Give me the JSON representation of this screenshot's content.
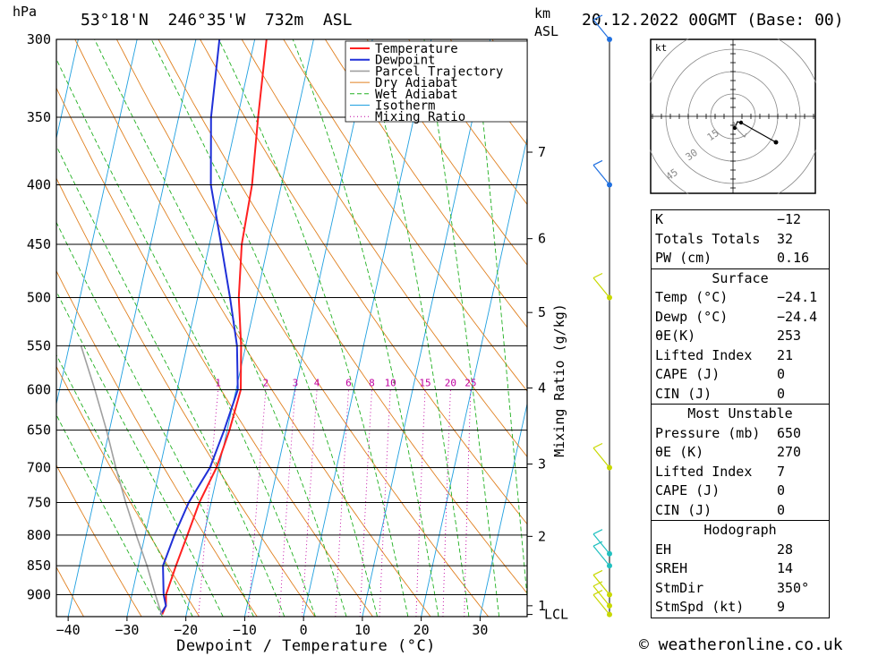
{
  "header": {
    "pressure_unit": "hPa",
    "location": "53°18'N  246°35'W  732m  ASL",
    "height_unit_km": "km",
    "height_unit_asl": "ASL",
    "datetime": "20.12.2022 00GMT (Base: 00)"
  },
  "chart_data": {
    "type": "line",
    "title": "53°18'N  246°35'W  732m  ASL",
    "xlabel": "Dewpoint / Temperature (°C)",
    "ylabel": "hPa",
    "y2label": "Mixing Ratio (g/kg)",
    "xlim": [
      -42,
      38
    ],
    "ylim": [
      940,
      300
    ],
    "y_scale": "log",
    "x_ticks": [
      "−40",
      "−30",
      "−20",
      "−10",
      "0",
      "10",
      "20",
      "30"
    ],
    "x_tick_values": [
      -40,
      -30,
      -20,
      -10,
      0,
      10,
      20,
      30
    ],
    "pressure_levels": [
      300,
      350,
      400,
      450,
      500,
      550,
      600,
      650,
      700,
      750,
      800,
      850,
      900
    ],
    "height_km_labels": [
      {
        "label": "7",
        "p": 375
      },
      {
        "label": "6",
        "p": 445
      },
      {
        "label": "5",
        "p": 515
      },
      {
        "label": "4",
        "p": 598
      },
      {
        "label": "3",
        "p": 695
      },
      {
        "label": "2",
        "p": 802
      },
      {
        "label": "1",
        "p": 920
      },
      {
        "label": "LCL",
        "p": 936
      }
    ],
    "mixing_ratio_labels": [
      "1",
      "2",
      "3",
      "4",
      "6",
      "8",
      "10",
      "15",
      "20",
      "25"
    ],
    "mixing_ratio_values": [
      1,
      2,
      3,
      4,
      6,
      8,
      10,
      15,
      20,
      25
    ],
    "legend": [
      "Temperature",
      "Dewpoint",
      "Parcel Trajectory",
      "Dry Adiabat",
      "Wet Adiabat",
      "Isotherm",
      "Mixing Ratio"
    ],
    "legend_position": "top-right",
    "series": [
      {
        "name": "Temperature",
        "color": "#ff2020",
        "points": [
          [
            -24.1,
            936
          ],
          [
            -23.8,
            920
          ],
          [
            -24.2,
            900
          ],
          [
            -23.6,
            850
          ],
          [
            -22.8,
            800
          ],
          [
            -22.0,
            750
          ],
          [
            -20.4,
            700
          ],
          [
            -19.6,
            650
          ],
          [
            -19.2,
            600
          ],
          [
            -20.8,
            550
          ],
          [
            -23.0,
            500
          ],
          [
            -24.5,
            450
          ],
          [
            -25.0,
            400
          ],
          [
            -26.5,
            350
          ],
          [
            -28.0,
            300
          ]
        ]
      },
      {
        "name": "Dewpoint",
        "color": "#2030d8",
        "points": [
          [
            -24.4,
            936
          ],
          [
            -23.8,
            920
          ],
          [
            -24.6,
            900
          ],
          [
            -25.8,
            850
          ],
          [
            -25.0,
            800
          ],
          [
            -23.8,
            750
          ],
          [
            -21.5,
            700
          ],
          [
            -20.5,
            650
          ],
          [
            -19.7,
            600
          ],
          [
            -21.5,
            550
          ],
          [
            -24.5,
            500
          ],
          [
            -28.0,
            450
          ],
          [
            -32.0,
            400
          ],
          [
            -34.5,
            350
          ],
          [
            -36.0,
            300
          ]
        ]
      },
      {
        "name": "Parcel Trajectory",
        "color": "#a0a0a0",
        "points": [
          [
            -24.2,
            936
          ],
          [
            -26.0,
            900
          ],
          [
            -28.5,
            850
          ],
          [
            -31.5,
            800
          ],
          [
            -34.5,
            750
          ],
          [
            -37.5,
            700
          ],
          [
            -40.5,
            650
          ],
          [
            -44.0,
            600
          ],
          [
            -48.0,
            550
          ]
        ]
      }
    ],
    "wind_barbs": [
      300,
      400,
      500,
      700,
      830,
      850,
      900,
      920,
      936
    ],
    "colors": {
      "temperature": "#ff2020",
      "dewpoint": "#2030d8",
      "parcel": "#a0a0a0",
      "dry_adiabat": "#e08020",
      "wet_adiabat": "#20b020",
      "isotherm": "#20a0e0",
      "mixing_ratio": "#c000a0",
      "wind_profile": "#20c0c0"
    }
  },
  "hodograph": {
    "unit": "kt",
    "ring_labels": [
      "15",
      "30",
      "45"
    ]
  },
  "indices": {
    "k_label": "K",
    "k_value": "−12",
    "tt_label": "Totals Totals",
    "tt_value": "32",
    "pw_label": "PW (cm)",
    "pw_value": "0.16"
  },
  "surface": {
    "title": "Surface",
    "temp_label": "Temp (°C)",
    "temp_value": "−24.1",
    "dewp_label": "Dewp (°C)",
    "dewp_value": "−24.4",
    "theta_label": "θE(K)",
    "theta_value": "253",
    "li_label": "Lifted Index",
    "li_value": "21",
    "cape_label": "CAPE (J)",
    "cape_value": "0",
    "cin_label": "CIN (J)",
    "cin_value": "0"
  },
  "most_unstable": {
    "title": "Most Unstable",
    "pressure_label": "Pressure (mb)",
    "pressure_value": "650",
    "theta_label": "θE (K)",
    "theta_value": "270",
    "li_label": "Lifted Index",
    "li_value": "7",
    "cape_label": "CAPE (J)",
    "cape_value": "0",
    "cin_label": "CIN (J)",
    "cin_value": "0"
  },
  "hodo_stats": {
    "title": "Hodograph",
    "eh_label": "EH",
    "eh_value": "28",
    "sreh_label": "SREH",
    "sreh_value": "14",
    "stmdir_label": "StmDir",
    "stmdir_value": "350°",
    "stmspd_label": "StmSpd (kt)",
    "stmspd_value": "9"
  },
  "footer": {
    "copyright": "© weatheronline.co.uk"
  }
}
